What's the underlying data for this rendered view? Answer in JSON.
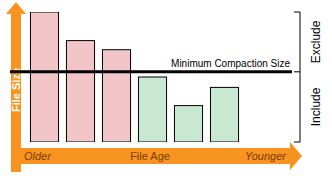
{
  "chart_data": {
    "type": "bar",
    "x_label": "File Age",
    "y_label": "File Size",
    "x_start_label": "Older",
    "x_end_label": "Younger",
    "categories": [
      null,
      null,
      null,
      null,
      null,
      null
    ],
    "values": [
      100,
      78,
      71,
      50,
      28,
      42
    ],
    "colors": [
      "#f2c6c8",
      "#f2c6c8",
      "#f2c6c8",
      "#c8e8d2",
      "#c8e8d2",
      "#c8e8d2"
    ],
    "threshold": {
      "value": 54,
      "label": "Minimum Compaction Size"
    },
    "groups": [
      {
        "label": "Exclude"
      },
      {
        "label": "Include"
      }
    ],
    "ylim": [
      0,
      100
    ],
    "yticks": [],
    "tick_labels": false
  }
}
